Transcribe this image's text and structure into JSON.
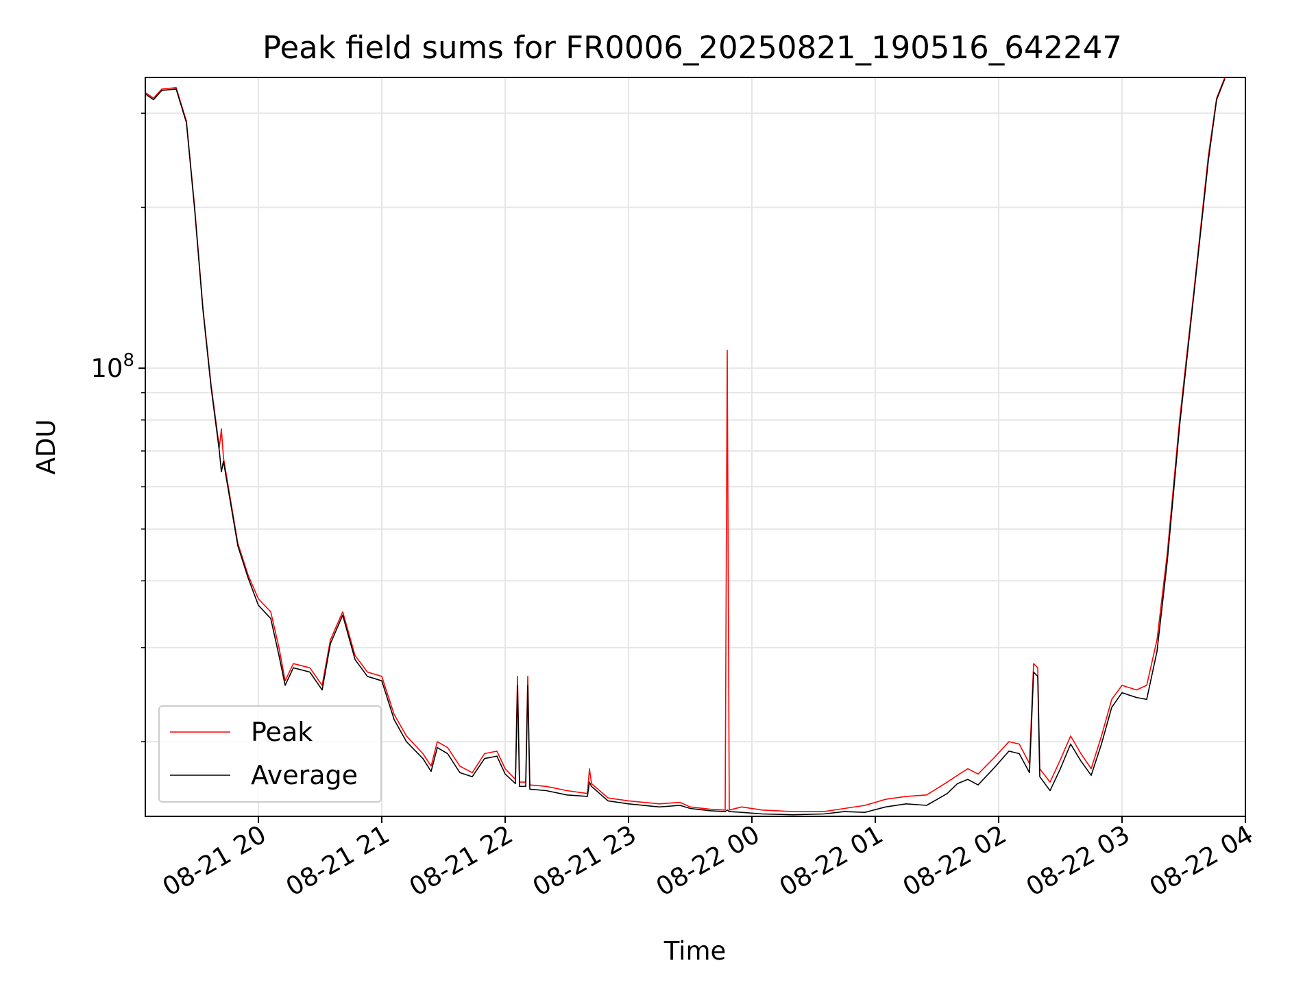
{
  "chart_data": {
    "type": "line",
    "title": "Peak field sums for FR0006_20250821_190516_642247",
    "xlabel": "Time",
    "ylabel": "ADU",
    "yscale": "log",
    "grid": true,
    "legend_position": "lower-left",
    "xlim": [
      "2025-08-21 19:05",
      "2025-08-22 04:00"
    ],
    "ylim": [
      14500000,
      350000000
    ],
    "x_ticks": [
      {
        "value": "2025-08-21 20:00",
        "label": "08-21 20"
      },
      {
        "value": "2025-08-21 21:00",
        "label": "08-21 21"
      },
      {
        "value": "2025-08-21 22:00",
        "label": "08-21 22"
      },
      {
        "value": "2025-08-21 23:00",
        "label": "08-21 23"
      },
      {
        "value": "2025-08-22 00:00",
        "label": "08-22 00"
      },
      {
        "value": "2025-08-22 01:00",
        "label": "08-22 01"
      },
      {
        "value": "2025-08-22 02:00",
        "label": "08-22 02"
      },
      {
        "value": "2025-08-22 03:00",
        "label": "08-22 03"
      },
      {
        "value": "2025-08-22 04:00",
        "label": "08-22 04"
      }
    ],
    "y_ticks": [
      {
        "value": 100000000,
        "label_base": "10",
        "label_exp": "8"
      }
    ],
    "y_minor_ticks": [
      20000000,
      30000000,
      40000000,
      50000000,
      60000000,
      70000000,
      80000000,
      90000000,
      200000000,
      300000000
    ],
    "series": [
      {
        "name": "Peak",
        "color": "#ff0000",
        "points": [
          [
            "2025-08-21 19:05",
            328000000
          ],
          [
            "2025-08-21 19:09",
            320000000
          ],
          [
            "2025-08-21 19:13",
            333000000
          ],
          [
            "2025-08-21 19:20",
            335000000
          ],
          [
            "2025-08-21 19:25",
            290000000
          ],
          [
            "2025-08-21 19:29",
            200000000
          ],
          [
            "2025-08-21 19:33",
            130000000
          ],
          [
            "2025-08-21 19:37",
            93000000
          ],
          [
            "2025-08-21 19:41",
            71000000
          ],
          [
            "2025-08-21 19:42",
            77000000
          ],
          [
            "2025-08-21 19:43",
            68000000
          ],
          [
            "2025-08-21 19:50",
            47000000
          ],
          [
            "2025-08-21 19:55",
            41000000
          ],
          [
            "2025-08-21 20:00",
            37000000
          ],
          [
            "2025-08-21 20:06",
            35000000
          ],
          [
            "2025-08-21 20:10",
            30000000
          ],
          [
            "2025-08-21 20:13",
            26000000
          ],
          [
            "2025-08-21 20:17",
            28000000
          ],
          [
            "2025-08-21 20:25",
            27500000
          ],
          [
            "2025-08-21 20:31",
            25500000
          ],
          [
            "2025-08-21 20:35",
            31000000
          ],
          [
            "2025-08-21 20:41",
            35000000
          ],
          [
            "2025-08-21 20:47",
            29000000
          ],
          [
            "2025-08-21 20:53",
            27000000
          ],
          [
            "2025-08-21 21:00",
            26500000
          ],
          [
            "2025-08-21 21:06",
            22500000
          ],
          [
            "2025-08-21 21:12",
            20500000
          ],
          [
            "2025-08-21 21:20",
            19000000
          ],
          [
            "2025-08-21 21:24",
            18000000
          ],
          [
            "2025-08-21 21:27",
            20000000
          ],
          [
            "2025-08-21 21:32",
            19500000
          ],
          [
            "2025-08-21 21:38",
            18000000
          ],
          [
            "2025-08-21 21:44",
            17500000
          ],
          [
            "2025-08-21 21:50",
            19000000
          ],
          [
            "2025-08-21 21:56",
            19200000
          ],
          [
            "2025-08-21 22:00",
            17800000
          ],
          [
            "2025-08-21 22:05",
            17000000
          ],
          [
            "2025-08-21 22:06",
            26500000
          ],
          [
            "2025-08-21 22:07",
            16800000
          ],
          [
            "2025-08-21 22:10",
            16800000
          ],
          [
            "2025-08-21 22:11",
            26500000
          ],
          [
            "2025-08-21 22:12",
            16600000
          ],
          [
            "2025-08-21 22:20",
            16500000
          ],
          [
            "2025-08-21 22:30",
            16200000
          ],
          [
            "2025-08-21 22:40",
            16000000
          ],
          [
            "2025-08-21 22:41",
            17800000
          ],
          [
            "2025-08-21 22:42",
            16700000
          ],
          [
            "2025-08-21 22:50",
            15700000
          ],
          [
            "2025-08-21 23:00",
            15500000
          ],
          [
            "2025-08-21 23:15",
            15300000
          ],
          [
            "2025-08-21 23:25",
            15400000
          ],
          [
            "2025-08-21 23:30",
            15100000
          ],
          [
            "2025-08-21 23:40",
            14950000
          ],
          [
            "2025-08-21 23:47",
            14900000
          ],
          [
            "2025-08-21 23:48",
            108000000
          ],
          [
            "2025-08-21 23:49",
            14900000
          ],
          [
            "2025-08-21 23:55",
            15100000
          ],
          [
            "2025-08-22 00:05",
            14900000
          ],
          [
            "2025-08-22 00:20",
            14800000
          ],
          [
            "2025-08-22 00:35",
            14800000
          ],
          [
            "2025-08-22 00:45",
            15000000
          ],
          [
            "2025-08-22 00:55",
            15200000
          ],
          [
            "2025-08-22 01:05",
            15600000
          ],
          [
            "2025-08-22 01:15",
            15800000
          ],
          [
            "2025-08-22 01:25",
            15900000
          ],
          [
            "2025-08-22 01:35",
            16800000
          ],
          [
            "2025-08-22 01:40",
            17300000
          ],
          [
            "2025-08-22 01:45",
            17800000
          ],
          [
            "2025-08-22 01:50",
            17400000
          ],
          [
            "2025-08-22 01:58",
            18700000
          ],
          [
            "2025-08-22 02:05",
            20000000
          ],
          [
            "2025-08-22 02:10",
            19800000
          ],
          [
            "2025-08-22 02:15",
            18200000
          ],
          [
            "2025-08-22 02:17",
            28000000
          ],
          [
            "2025-08-22 02:19",
            27500000
          ],
          [
            "2025-08-22 02:20",
            17800000
          ],
          [
            "2025-08-22 02:25",
            16800000
          ],
          [
            "2025-08-22 02:30",
            18500000
          ],
          [
            "2025-08-22 02:35",
            20500000
          ],
          [
            "2025-08-22 02:40",
            19000000
          ],
          [
            "2025-08-22 02:45",
            17800000
          ],
          [
            "2025-08-22 02:50",
            20500000
          ],
          [
            "2025-08-22 02:55",
            24000000
          ],
          [
            "2025-08-22 03:00",
            25500000
          ],
          [
            "2025-08-22 03:07",
            25000000
          ],
          [
            "2025-08-22 03:12",
            25500000
          ],
          [
            "2025-08-22 03:17",
            31000000
          ],
          [
            "2025-08-22 03:22",
            45000000
          ],
          [
            "2025-08-22 03:28",
            80000000
          ],
          [
            "2025-08-22 03:35",
            140000000
          ],
          [
            "2025-08-22 03:42",
            250000000
          ],
          [
            "2025-08-22 03:46",
            320000000
          ],
          [
            "2025-08-22 03:50",
            350000000
          ]
        ]
      },
      {
        "name": "Average",
        "color": "#000000",
        "points": [
          [
            "2025-08-21 19:05",
            326000000
          ],
          [
            "2025-08-21 19:09",
            318000000
          ],
          [
            "2025-08-21 19:13",
            331000000
          ],
          [
            "2025-08-21 19:20",
            333000000
          ],
          [
            "2025-08-21 19:25",
            288000000
          ],
          [
            "2025-08-21 19:29",
            198000000
          ],
          [
            "2025-08-21 19:33",
            129000000
          ],
          [
            "2025-08-21 19:37",
            92000000
          ],
          [
            "2025-08-21 19:41",
            70000000
          ],
          [
            "2025-08-21 19:42",
            64000000
          ],
          [
            "2025-08-21 19:43",
            67000000
          ],
          [
            "2025-08-21 19:50",
            46500000
          ],
          [
            "2025-08-21 19:55",
            40500000
          ],
          [
            "2025-08-21 20:00",
            36000000
          ],
          [
            "2025-08-21 20:06",
            34000000
          ],
          [
            "2025-08-21 20:10",
            29000000
          ],
          [
            "2025-08-21 20:13",
            25500000
          ],
          [
            "2025-08-21 20:17",
            27500000
          ],
          [
            "2025-08-21 20:25",
            27000000
          ],
          [
            "2025-08-21 20:31",
            25000000
          ],
          [
            "2025-08-21 20:35",
            30500000
          ],
          [
            "2025-08-21 20:41",
            34500000
          ],
          [
            "2025-08-21 20:47",
            28500000
          ],
          [
            "2025-08-21 20:53",
            26500000
          ],
          [
            "2025-08-21 21:00",
            26000000
          ],
          [
            "2025-08-21 21:06",
            22000000
          ],
          [
            "2025-08-21 21:12",
            20000000
          ],
          [
            "2025-08-21 21:20",
            18600000
          ],
          [
            "2025-08-21 21:24",
            17600000
          ],
          [
            "2025-08-21 21:27",
            19500000
          ],
          [
            "2025-08-21 21:32",
            19000000
          ],
          [
            "2025-08-21 21:38",
            17500000
          ],
          [
            "2025-08-21 21:44",
            17200000
          ],
          [
            "2025-08-21 21:50",
            18600000
          ],
          [
            "2025-08-21 21:56",
            18800000
          ],
          [
            "2025-08-21 22:00",
            17400000
          ],
          [
            "2025-08-21 22:05",
            16700000
          ],
          [
            "2025-08-21 22:06",
            25500000
          ],
          [
            "2025-08-21 22:07",
            16500000
          ],
          [
            "2025-08-21 22:10",
            16500000
          ],
          [
            "2025-08-21 22:11",
            25500000
          ],
          [
            "2025-08-21 22:12",
            16300000
          ],
          [
            "2025-08-21 22:20",
            16200000
          ],
          [
            "2025-08-21 22:30",
            15900000
          ],
          [
            "2025-08-21 22:40",
            15800000
          ],
          [
            "2025-08-21 22:41",
            16800000
          ],
          [
            "2025-08-21 22:42",
            16500000
          ],
          [
            "2025-08-21 22:50",
            15500000
          ],
          [
            "2025-08-21 23:00",
            15300000
          ],
          [
            "2025-08-21 23:15",
            15100000
          ],
          [
            "2025-08-21 23:25",
            15200000
          ],
          [
            "2025-08-21 23:30",
            15000000
          ],
          [
            "2025-08-21 23:40",
            14850000
          ],
          [
            "2025-08-21 23:47",
            14800000
          ],
          [
            "2025-08-21 23:48",
            14900000
          ],
          [
            "2025-08-21 23:49",
            14800000
          ],
          [
            "2025-08-21 23:55",
            14750000
          ],
          [
            "2025-08-22 00:05",
            14650000
          ],
          [
            "2025-08-22 00:20",
            14600000
          ],
          [
            "2025-08-22 00:35",
            14650000
          ],
          [
            "2025-08-22 00:45",
            14800000
          ],
          [
            "2025-08-22 00:55",
            14750000
          ],
          [
            "2025-08-22 01:05",
            15100000
          ],
          [
            "2025-08-22 01:15",
            15300000
          ],
          [
            "2025-08-22 01:25",
            15200000
          ],
          [
            "2025-08-22 01:35",
            16000000
          ],
          [
            "2025-08-22 01:40",
            16700000
          ],
          [
            "2025-08-22 01:45",
            17000000
          ],
          [
            "2025-08-22 01:50",
            16600000
          ],
          [
            "2025-08-22 01:58",
            17900000
          ],
          [
            "2025-08-22 02:05",
            19200000
          ],
          [
            "2025-08-22 02:10",
            19000000
          ],
          [
            "2025-08-22 02:15",
            17500000
          ],
          [
            "2025-08-22 02:17",
            27000000
          ],
          [
            "2025-08-22 02:19",
            26500000
          ],
          [
            "2025-08-22 02:20",
            17200000
          ],
          [
            "2025-08-22 02:25",
            16200000
          ],
          [
            "2025-08-22 02:30",
            17800000
          ],
          [
            "2025-08-22 02:35",
            19800000
          ],
          [
            "2025-08-22 02:40",
            18400000
          ],
          [
            "2025-08-22 02:45",
            17300000
          ],
          [
            "2025-08-22 02:50",
            19800000
          ],
          [
            "2025-08-22 02:55",
            23200000
          ],
          [
            "2025-08-22 03:00",
            24700000
          ],
          [
            "2025-08-22 03:07",
            24200000
          ],
          [
            "2025-08-22 03:12",
            24000000
          ],
          [
            "2025-08-22 03:17",
            29500000
          ],
          [
            "2025-08-22 03:22",
            43500000
          ],
          [
            "2025-08-22 03:28",
            78000000
          ],
          [
            "2025-08-22 03:35",
            138000000
          ],
          [
            "2025-08-22 03:42",
            245000000
          ],
          [
            "2025-08-22 03:46",
            318000000
          ],
          [
            "2025-08-22 03:50",
            348000000
          ]
        ]
      }
    ]
  }
}
